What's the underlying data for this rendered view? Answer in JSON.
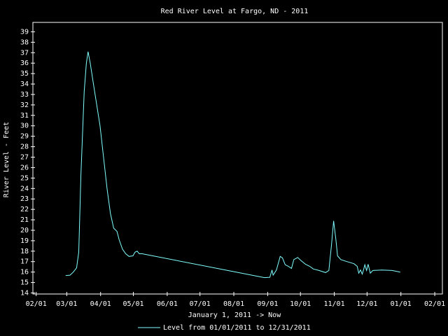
{
  "chart_data": {
    "type": "line",
    "title": "Red River Level at Fargo, ND - 2011",
    "x_label": "January 1, 2011 -> Now",
    "y_label": "River Level - Feet",
    "x": [
      58,
      62,
      65,
      68,
      70,
      72,
      75,
      77,
      78.5,
      80.5,
      83,
      86,
      89.5,
      92.7,
      96,
      99,
      102,
      105,
      107,
      110,
      113,
      116,
      119.6,
      121.5,
      123.5,
      125.4,
      128,
      240,
      245,
      247,
      248,
      251,
      254.5,
      256.5,
      259,
      262,
      264.8,
      267,
      270.5,
      273.5,
      277.6,
      281.5,
      284.7,
      290,
      296,
      299,
      301.4,
      303.4,
      305.4,
      307,
      310,
      315.5,
      322,
      325,
      326.4,
      328,
      329.6,
      331,
      332,
      333.6,
      335,
      337,
      339.3,
      347.6,
      357,
      364.4
    ],
    "series": [
      {
        "name": "Level from 01/01/2011 to 12/31/2011",
        "color": "#80ffff",
        "values": [
          15.67,
          15.7,
          16.0,
          16.4,
          17.9,
          25.3,
          33.3,
          36.0,
          37.1,
          36.0,
          34.3,
          32.3,
          30.0,
          27.0,
          23.9,
          21.6,
          20.2,
          19.9,
          19.1,
          18.2,
          17.75,
          17.5,
          17.55,
          17.9,
          18.0,
          17.75,
          17.75,
          15.47,
          15.5,
          16.2,
          15.7,
          16.2,
          17.5,
          17.35,
          16.7,
          16.55,
          16.35,
          17.2,
          17.4,
          17.1,
          16.75,
          16.55,
          16.3,
          16.15,
          15.95,
          16.15,
          18.55,
          20.9,
          19.2,
          17.55,
          17.2,
          17.0,
          16.8,
          16.55,
          15.9,
          16.2,
          15.8,
          16.3,
          16.7,
          16.15,
          16.75,
          15.9,
          16.15,
          16.2,
          16.15,
          16.0
        ]
      }
    ],
    "xlim": [
      28,
      403
    ],
    "xticks": [
      {
        "value": 31,
        "label": "02/01"
      },
      {
        "value": 59,
        "label": "03/01"
      },
      {
        "value": 90,
        "label": "04/01"
      },
      {
        "value": 120,
        "label": "05/01"
      },
      {
        "value": 151,
        "label": "06/01"
      },
      {
        "value": 181,
        "label": "07/01"
      },
      {
        "value": 212,
        "label": "08/01"
      },
      {
        "value": 243,
        "label": "09/01"
      },
      {
        "value": 273,
        "label": "10/01"
      },
      {
        "value": 304,
        "label": "11/01"
      },
      {
        "value": 334,
        "label": "12/01"
      },
      {
        "value": 365,
        "label": "01/01"
      },
      {
        "value": 396,
        "label": "02/01"
      }
    ],
    "ylim": [
      13.9,
      39.9
    ],
    "yticks": [
      14,
      15,
      16,
      17,
      18,
      19,
      20,
      21,
      22,
      23,
      24,
      25,
      26,
      27,
      28,
      29,
      30,
      31,
      32,
      33,
      34,
      35,
      36,
      37,
      38,
      39
    ],
    "grid": false,
    "axis_color": "#ffffff"
  }
}
